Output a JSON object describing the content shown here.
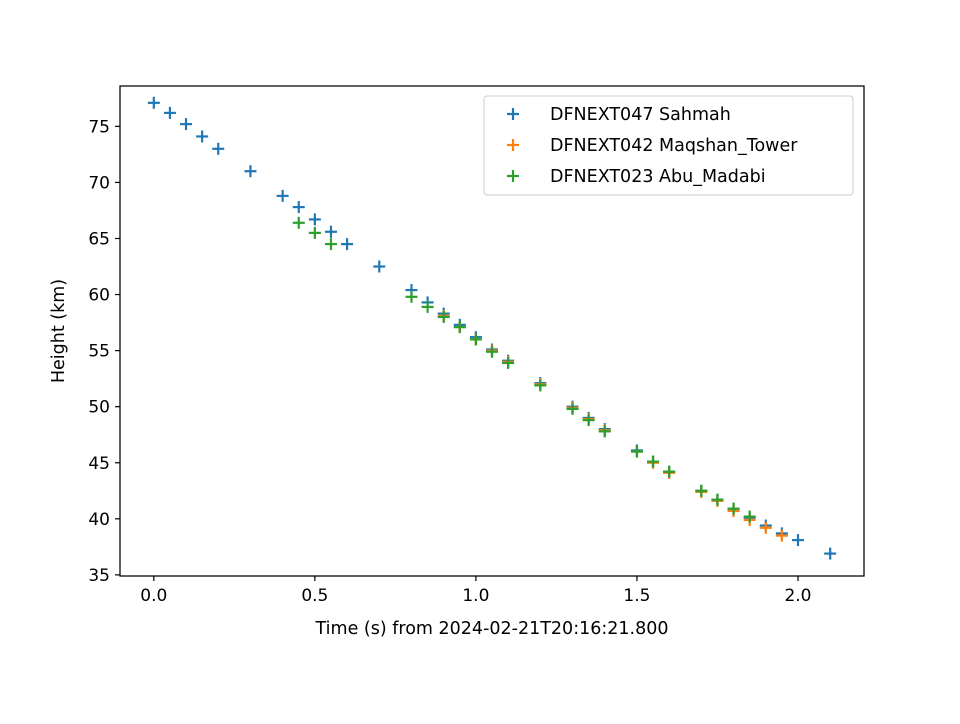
{
  "chart_data": {
    "type": "scatter",
    "xlabel": "Time (s) from 2024-02-21T20:16:21.800",
    "ylabel": "Height (km)",
    "xlim": [
      -0.105,
      2.205
    ],
    "ylim": [
      34.9,
      78.6
    ],
    "x_ticks": [
      0.0,
      0.5,
      1.0,
      1.5,
      2.0
    ],
    "x_tick_labels": [
      "0.0",
      "0.5",
      "1.0",
      "1.5",
      "2.0"
    ],
    "y_ticks": [
      35,
      40,
      45,
      50,
      55,
      60,
      65,
      70,
      75
    ],
    "y_tick_labels": [
      "35",
      "40",
      "45",
      "50",
      "55",
      "60",
      "65",
      "70",
      "75"
    ],
    "grid": false,
    "legend_position": "upper-right",
    "marker": "plus",
    "series": [
      {
        "name": "DFNEXT047 Sahmah",
        "color": "#1f77b4",
        "points": [
          [
            0.0,
            77.1
          ],
          [
            0.05,
            76.2
          ],
          [
            0.1,
            75.2
          ],
          [
            0.15,
            74.1
          ],
          [
            0.2,
            73.0
          ],
          [
            0.3,
            71.0
          ],
          [
            0.4,
            68.8
          ],
          [
            0.45,
            67.8
          ],
          [
            0.5,
            66.7
          ],
          [
            0.55,
            65.6
          ],
          [
            0.6,
            64.5
          ],
          [
            0.7,
            62.5
          ],
          [
            0.8,
            60.4
          ],
          [
            0.85,
            59.3
          ],
          [
            0.9,
            58.3
          ],
          [
            0.95,
            57.3
          ],
          [
            1.0,
            56.2
          ],
          [
            1.05,
            55.1
          ],
          [
            1.1,
            54.1
          ],
          [
            1.2,
            52.1
          ],
          [
            1.3,
            50.0
          ],
          [
            1.35,
            49.0
          ],
          [
            1.4,
            48.0
          ],
          [
            1.5,
            46.1
          ],
          [
            1.55,
            45.1
          ],
          [
            1.6,
            44.2
          ],
          [
            1.7,
            42.5
          ],
          [
            1.75,
            41.7
          ],
          [
            1.8,
            40.9
          ],
          [
            1.85,
            40.1
          ],
          [
            1.9,
            39.4
          ],
          [
            1.95,
            38.7
          ],
          [
            2.0,
            38.1
          ],
          [
            2.1,
            36.9
          ]
        ]
      },
      {
        "name": "DFNEXT042 Maqshan_Tower",
        "color": "#ff7f0e",
        "points": [
          [
            0.9,
            58.1
          ],
          [
            0.95,
            57.1
          ],
          [
            1.0,
            56.0
          ],
          [
            1.05,
            55.0
          ],
          [
            1.1,
            54.0
          ],
          [
            1.2,
            52.0
          ],
          [
            1.3,
            49.9
          ],
          [
            1.35,
            48.9
          ],
          [
            1.4,
            47.9
          ],
          [
            1.5,
            46.0
          ],
          [
            1.55,
            45.0
          ],
          [
            1.6,
            44.1
          ],
          [
            1.7,
            42.4
          ],
          [
            1.75,
            41.6
          ],
          [
            1.8,
            40.7
          ],
          [
            1.85,
            39.9
          ],
          [
            1.9,
            39.2
          ],
          [
            1.95,
            38.5
          ]
        ]
      },
      {
        "name": "DFNEXT023 Abu_Madabi",
        "color": "#2ca02c",
        "points": [
          [
            0.45,
            66.4
          ],
          [
            0.5,
            65.5
          ],
          [
            0.55,
            64.5
          ],
          [
            0.8,
            59.8
          ],
          [
            0.85,
            58.9
          ],
          [
            0.9,
            58.0
          ],
          [
            0.95,
            57.1
          ],
          [
            1.0,
            56.0
          ],
          [
            1.05,
            54.9
          ],
          [
            1.1,
            53.9
          ],
          [
            1.2,
            51.9
          ],
          [
            1.3,
            49.8
          ],
          [
            1.35,
            48.8
          ],
          [
            1.4,
            47.8
          ],
          [
            1.5,
            46.0
          ],
          [
            1.55,
            45.1
          ],
          [
            1.6,
            44.2
          ],
          [
            1.7,
            42.5
          ],
          [
            1.75,
            41.7
          ],
          [
            1.8,
            40.9
          ],
          [
            1.85,
            40.2
          ]
        ]
      }
    ]
  }
}
